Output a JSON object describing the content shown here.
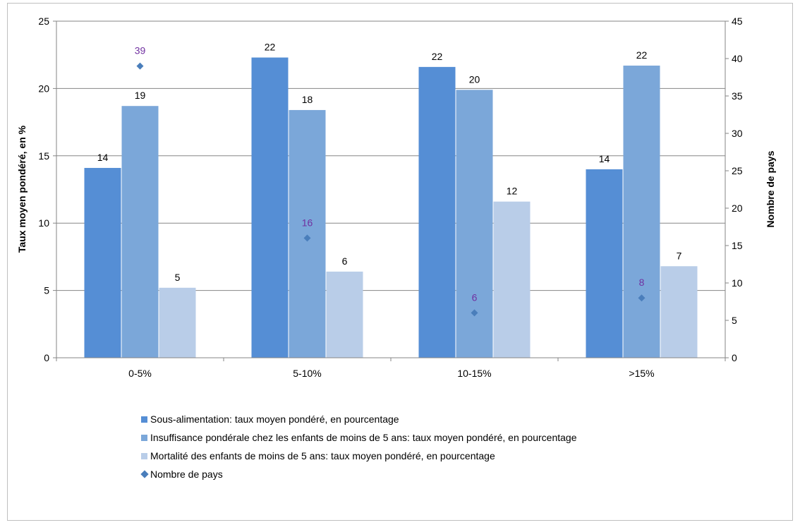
{
  "chart_data": {
    "type": "bar",
    "categories": [
      "0-5%",
      "5-10%",
      "10-15%",
      ">15%"
    ],
    "series": [
      {
        "name": "Sous-alimentation: taux moyen pondéré, en pourcentage",
        "axis": "left",
        "kind": "bar",
        "color": "#558ed5",
        "values": [
          14.1,
          22.3,
          21.6,
          14.0
        ],
        "labels": [
          "14",
          "22",
          "22",
          "14"
        ]
      },
      {
        "name": "Insuffisance pondérale chez les enfants de moins de 5 ans: taux moyen pondéré, en pourcentage",
        "axis": "left",
        "kind": "bar",
        "color": "#7ba7d9",
        "values": [
          18.7,
          18.4,
          19.9,
          21.7
        ],
        "labels": [
          "19",
          "18",
          "20",
          "22"
        ]
      },
      {
        "name": "Mortalité des enfants de moins de 5 ans: taux moyen pondéré, en pourcentage",
        "axis": "left",
        "kind": "bar",
        "color": "#b9cde8",
        "values": [
          5.2,
          6.4,
          11.6,
          6.8
        ],
        "labels": [
          "5",
          "6",
          "12",
          "7"
        ]
      },
      {
        "name": "Nombre de pays",
        "axis": "right",
        "kind": "scatter",
        "color": "#4a7ebb",
        "label_color": "#7030a0",
        "values": [
          39,
          16,
          6,
          8
        ],
        "labels": [
          "39",
          "16",
          "6",
          "8"
        ]
      }
    ],
    "ylabel": "Taux moyen pondéré, en %",
    "y2label": "Nombre de pays",
    "ylim": [
      0,
      25
    ],
    "y2lim": [
      0,
      45
    ],
    "yticks": [
      0,
      5,
      10,
      15,
      20,
      25
    ],
    "y2ticks": [
      0,
      5,
      10,
      15,
      20,
      25,
      30,
      35,
      40,
      45
    ],
    "grid": true,
    "legend_position": "bottom"
  },
  "legend": {
    "items": [
      {
        "label": "Sous-alimentation: taux moyen pondéré, en pourcentage",
        "color": "#558ed5",
        "marker": "square"
      },
      {
        "label": "Insuffisance pondérale chez les enfants de moins de 5 ans: taux moyen pondéré, en pourcentage",
        "color": "#7ba7d9",
        "marker": "square"
      },
      {
        "label": "Mortalité des enfants de moins de 5 ans: taux moyen pondéré, en pourcentage",
        "color": "#b9cde8",
        "marker": "square"
      },
      {
        "label": "Nombre de pays",
        "color": "#4a7ebb",
        "marker": "diamond"
      }
    ]
  }
}
